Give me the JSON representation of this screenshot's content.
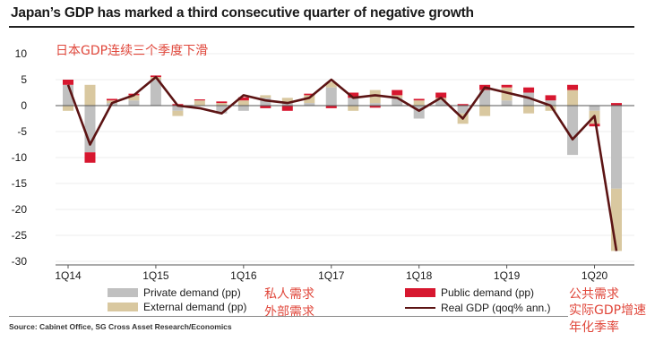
{
  "header": {
    "title": "Japan’s GDP has marked a third consecutive quarter of negative growth",
    "annotation_cn": "日本GDP连续三个季度下滑"
  },
  "legend": {
    "items": [
      {
        "key": "private",
        "label": "Private demand (pp)",
        "label_cn": "私人需求",
        "color": "#c0c0c0"
      },
      {
        "key": "external",
        "label": "External demand (pp)",
        "label_cn": "外部需求",
        "color": "#d9c8a0"
      },
      {
        "key": "public",
        "label": "Public demand (pp)",
        "label_cn": "公共需求",
        "color": "#d7172f"
      },
      {
        "key": "gdp",
        "label": "Real GDP (qoq% ann.)",
        "label_cn": "实际GDP增速\n年化季率",
        "color": "#5c1414"
      }
    ]
  },
  "footer": {
    "source": "Source: Cabinet Office, SG Cross Asset Research/Economics"
  },
  "chart_data": {
    "type": "bar",
    "title": "Japan’s GDP has marked a third consecutive quarter of negative growth",
    "ylim": [
      -30,
      10
    ],
    "yticks": [
      10,
      5,
      0,
      -5,
      -10,
      -15,
      -20,
      -25,
      -30
    ],
    "x_tick_labels": [
      {
        "index": 0,
        "label": "1Q14"
      },
      {
        "index": 4,
        "label": "1Q15"
      },
      {
        "index": 8,
        "label": "1Q16"
      },
      {
        "index": 12,
        "label": "1Q17"
      },
      {
        "index": 16,
        "label": "1Q18"
      },
      {
        "index": 20,
        "label": "1Q19"
      },
      {
        "index": 24,
        "label": "1Q20"
      }
    ],
    "categories": [
      "1Q14",
      "2Q14",
      "3Q14",
      "4Q14",
      "1Q15",
      "2Q15",
      "3Q15",
      "4Q15",
      "1Q16",
      "2Q16",
      "3Q16",
      "4Q16",
      "1Q17",
      "2Q17",
      "3Q17",
      "4Q17",
      "1Q18",
      "2Q18",
      "3Q18",
      "4Q18",
      "1Q19",
      "2Q19",
      "3Q19",
      "4Q19",
      "1Q20",
      "2Q20"
    ],
    "series": [
      {
        "name": "Private demand (pp)",
        "key": "private",
        "values": [
          4.0,
          -9.0,
          0.5,
          1.0,
          5.0,
          -1.0,
          0.0,
          -1.5,
          -1.0,
          1.5,
          0.5,
          0.5,
          3.5,
          1.5,
          0.5,
          1.5,
          -2.5,
          1.0,
          -1.5,
          3.0,
          1.0,
          2.5,
          1.0,
          -9.5,
          -1.0,
          -16.0
        ]
      },
      {
        "name": "External demand (pp)",
        "key": "external",
        "values": [
          -1.0,
          4.0,
          0.5,
          1.0,
          0.5,
          -1.0,
          1.0,
          0.5,
          1.0,
          0.5,
          1.0,
          1.5,
          1.0,
          -1.0,
          2.5,
          0.5,
          1.0,
          0.5,
          -2.0,
          -2.0,
          2.5,
          -1.5,
          -1.0,
          3.0,
          -2.5,
          -12.0
        ]
      },
      {
        "name": "Public demand (pp)",
        "key": "public",
        "values": [
          1.0,
          -2.0,
          0.3,
          0.3,
          0.3,
          0.3,
          0.2,
          0.3,
          0.6,
          -0.5,
          -1.0,
          0.3,
          -0.5,
          1.0,
          -0.4,
          1.0,
          0.3,
          1.0,
          0.3,
          1.0,
          0.5,
          1.0,
          1.0,
          1.0,
          -0.5,
          0.5
        ]
      },
      {
        "name": "Real GDP (qoq% ann.)",
        "key": "gdp",
        "values": [
          4.0,
          -7.5,
          0.5,
          2.0,
          5.5,
          0.0,
          -0.5,
          -1.5,
          2.0,
          1.0,
          0.5,
          1.5,
          5.0,
          1.5,
          2.0,
          1.5,
          -1.0,
          1.5,
          -2.5,
          3.5,
          2.5,
          1.5,
          0.0,
          -6.5,
          -2.0,
          -28.0
        ]
      }
    ]
  }
}
